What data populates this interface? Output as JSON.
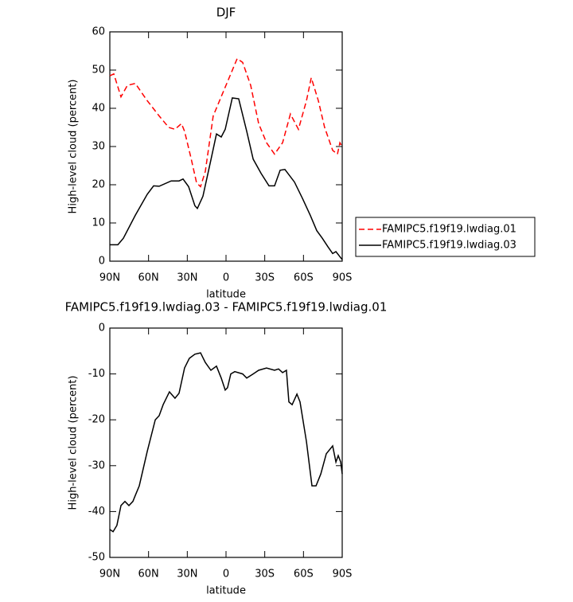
{
  "chart_data": [
    {
      "type": "line",
      "title": "DJF",
      "xlabel": "latitude",
      "ylabel": "High-level cloud (percent)",
      "xlim": [
        90,
        -90
      ],
      "xticks": [
        {
          "value": 90,
          "label": "90N"
        },
        {
          "value": 60,
          "label": "60N"
        },
        {
          "value": 30,
          "label": "30N"
        },
        0,
        {
          "value": -30,
          "label": "30S"
        },
        {
          "value": -60,
          "label": "60S"
        },
        {
          "value": -90,
          "label": "90S"
        }
      ],
      "ylim": [
        0,
        60
      ],
      "yticks": [
        0,
        10,
        20,
        30,
        40,
        50,
        60
      ],
      "legend": "right",
      "series": [
        {
          "name": "FAMIPC5.f19f19.lwdiag.01",
          "color": "#ff0000",
          "dash": true,
          "x": [
            90,
            86.9,
            81.4,
            76.4,
            70.3,
            61.0,
            51.8,
            44.4,
            39.5,
            34.5,
            32.1,
            27.1,
            22.8,
            19.7,
            16.0,
            9.9,
            2.5,
            -3.7,
            -8.6,
            -12.9,
            -19.1,
            -25.3,
            -31.4,
            -37.6,
            -43.8,
            -49.9,
            -56.1,
            -62.3,
            -66.0,
            -71.5,
            -76.4,
            -82.6,
            -86.3,
            -88.2,
            -90
          ],
          "values": [
            48.5,
            49,
            43,
            46,
            46.5,
            42,
            38,
            35,
            34.5,
            36,
            34,
            27,
            20.5,
            19.5,
            23.5,
            38,
            44,
            49,
            53,
            52,
            46,
            36,
            31,
            28,
            31,
            38.5,
            34.5,
            42,
            48,
            42,
            35,
            29,
            28,
            31,
            30
          ]
        },
        {
          "name": "FAMIPC5.f19f19.lwdiag.03",
          "color": "#000000",
          "dash": false,
          "x": [
            90,
            83.8,
            79.5,
            70.3,
            61.0,
            56.1,
            51.8,
            42.5,
            36.4,
            33.3,
            29.0,
            24.1,
            22.2,
            17.9,
            11.7,
            7.4,
            3.7,
            0.6,
            -4.9,
            -9.8,
            -16.0,
            -21.0,
            -27.1,
            -33.3,
            -37.6,
            -41.9,
            -45.6,
            -53.0,
            -59.1,
            -65.3,
            -70.3,
            -74.6,
            -78.9,
            -82.6,
            -85.1,
            -87.5,
            -90
          ],
          "values": [
            4.3,
            4.3,
            6,
            12,
            17.5,
            19.7,
            19.6,
            21,
            21,
            21.5,
            19.5,
            14.5,
            13.8,
            17,
            26.5,
            33.3,
            32.5,
            34.5,
            42.7,
            42.5,
            34,
            26.7,
            23,
            19.7,
            19.7,
            23.8,
            24,
            20.7,
            16.5,
            12,
            8,
            6,
            3.8,
            2,
            2.5,
            1.5,
            0.4
          ]
        }
      ]
    },
    {
      "type": "line",
      "title": "FAMIPC5.f19f19.lwdiag.03 - FAMIPC5.f19f19.lwdiag.01",
      "xlabel": "latitude",
      "ylabel": "High-level cloud (percent)",
      "xlim": [
        90,
        -90
      ],
      "xticks": [
        {
          "value": 90,
          "label": "90N"
        },
        {
          "value": 60,
          "label": "60N"
        },
        {
          "value": 30,
          "label": "30N"
        },
        0,
        {
          "value": -30,
          "label": "30S"
        },
        {
          "value": -60,
          "label": "60S"
        },
        {
          "value": -90,
          "label": "90S"
        }
      ],
      "ylim": [
        -50,
        0
      ],
      "yticks": [
        -50,
        -40,
        -30,
        -20,
        -10,
        0
      ],
      "series": [
        {
          "color": "#000000",
          "dash": false,
          "x": [
            90,
            87.5,
            84.5,
            81.4,
            78.3,
            75.2,
            72.1,
            70.3,
            67.2,
            61.0,
            54.8,
            51.8,
            48.7,
            43.8,
            39.5,
            36.4,
            32.1,
            28.4,
            24.1,
            19.7,
            16.0,
            11.7,
            7.4,
            3.7,
            0.6,
            -1.2,
            -3.7,
            -6.8,
            -12.9,
            -16.0,
            -21.0,
            -25.3,
            -31.4,
            -37.6,
            -40.7,
            -43.8,
            -46.8,
            -48.7,
            -51.2,
            -54.9,
            -57.3,
            -62.3,
            -66.6,
            -69.7,
            -73.4,
            -77.7,
            -82.6,
            -85.1,
            -86.9,
            -88.8,
            -90
          ],
          "values": [
            -43.9,
            -44.4,
            -43,
            -38.7,
            -37.8,
            -38.7,
            -37.8,
            -36.5,
            -34.4,
            -26.9,
            -20,
            -19.1,
            -16.7,
            -13.9,
            -15.3,
            -14.2,
            -8.7,
            -6.6,
            -5.7,
            -5.4,
            -7.5,
            -9.2,
            -8.3,
            -10.9,
            -13.5,
            -13,
            -10,
            -9.5,
            -10,
            -10.9,
            -10,
            -9.2,
            -8.7,
            -9.2,
            -8.9,
            -9.7,
            -9.2,
            -16.1,
            -16.7,
            -14.4,
            -16.1,
            -24.8,
            -34.4,
            -34.4,
            -31.8,
            -27.4,
            -25.7,
            -29.2,
            -27.8,
            -29.2,
            -31.8
          ]
        }
      ]
    }
  ]
}
